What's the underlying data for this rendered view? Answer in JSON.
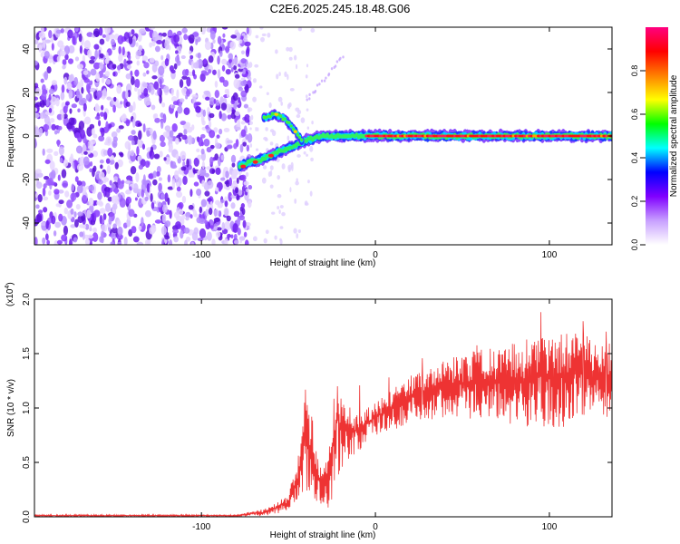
{
  "title": "C2E6.2025.245.18.48.G06",
  "chart_data": [
    {
      "type": "heatmap",
      "name": "spectrogram",
      "xlabel": "Height of straight line (km)",
      "ylabel": "Frequency (Hz)",
      "xlim": [
        -196,
        136
      ],
      "ylim": [
        -50,
        50
      ],
      "xticks": [
        -100,
        0,
        100
      ],
      "yticks": [
        -40,
        -20,
        0,
        20,
        40
      ],
      "colorbar": {
        "label": "Normalized spectral amplitude",
        "range": [
          0.0,
          1.0
        ],
        "ticks": [
          "0.0",
          "0.2",
          "0.4",
          "0.6",
          "0.8"
        ],
        "tick_values": [
          0.0,
          0.2,
          0.4,
          0.6,
          0.8
        ],
        "colors": [
          "#ffffff",
          "#c8a0ff",
          "#8000ff",
          "#0000ff",
          "#00ffff",
          "#00ff00",
          "#ffff00",
          "#ff8000",
          "#ff0000",
          "#ff0080"
        ]
      },
      "noise_region": {
        "x_from": -196,
        "x_to": -78,
        "y_from": -50,
        "y_to": 50
      },
      "signal_track": [
        {
          "x": -78,
          "y": -14
        },
        {
          "x": -72,
          "y": -12
        },
        {
          "x": -66,
          "y": -11
        },
        {
          "x": -60,
          "y": -9
        },
        {
          "x": -55,
          "y": -7
        },
        {
          "x": -48,
          "y": -5
        },
        {
          "x": -40,
          "y": -2
        },
        {
          "x": -30,
          "y": 0
        },
        {
          "x": -20,
          "y": 0
        },
        {
          "x": 0,
          "y": 0
        },
        {
          "x": 136,
          "y": 0
        }
      ],
      "side_branch": [
        {
          "x": -64,
          "y": 8
        },
        {
          "x": -58,
          "y": 10
        },
        {
          "x": -52,
          "y": 8
        },
        {
          "x": -46,
          "y": 2
        },
        {
          "x": -42,
          "y": -2
        }
      ]
    },
    {
      "type": "line",
      "name": "snr",
      "xlabel": "Height of straight line (km)",
      "ylabel": "SNR (10 * v/v)",
      "multiplier": "(x10",
      "multiplier_exp": "4",
      "xlim": [
        -196,
        136
      ],
      "ylim": [
        0.0,
        2.0
      ],
      "xticks": [
        -100,
        0,
        100
      ],
      "yticks": [
        "0.0",
        "0.5",
        "1.0",
        "1.5",
        "2.0"
      ],
      "ytick_values": [
        0.0,
        0.5,
        1.0,
        1.5,
        2.0
      ],
      "color": "#ee3333",
      "envelope": [
        {
          "x": -196,
          "lo": 0.0,
          "hi": 0.02
        },
        {
          "x": -80,
          "lo": 0.0,
          "hi": 0.02
        },
        {
          "x": -62,
          "lo": 0.01,
          "hi": 0.08
        },
        {
          "x": -50,
          "lo": 0.05,
          "hi": 0.2
        },
        {
          "x": -44,
          "lo": 0.1,
          "hi": 0.6
        },
        {
          "x": -40,
          "lo": 0.2,
          "hi": 1.25
        },
        {
          "x": -36,
          "lo": 0.15,
          "hi": 0.9
        },
        {
          "x": -32,
          "lo": 0.1,
          "hi": 0.5
        },
        {
          "x": -27,
          "lo": 0.05,
          "hi": 0.6
        },
        {
          "x": -22,
          "lo": 0.3,
          "hi": 1.4
        },
        {
          "x": -18,
          "lo": 0.5,
          "hi": 1.05
        },
        {
          "x": -10,
          "lo": 0.6,
          "hi": 0.95
        },
        {
          "x": 0,
          "lo": 0.75,
          "hi": 1.05
        },
        {
          "x": 20,
          "lo": 0.85,
          "hi": 1.3
        },
        {
          "x": 40,
          "lo": 0.9,
          "hi": 1.45
        },
        {
          "x": 60,
          "lo": 0.9,
          "hi": 1.55
        },
        {
          "x": 80,
          "lo": 0.85,
          "hi": 1.6
        },
        {
          "x": 100,
          "lo": 0.8,
          "hi": 1.7
        },
        {
          "x": 120,
          "lo": 0.85,
          "hi": 1.7
        },
        {
          "x": 136,
          "lo": 0.9,
          "hi": 1.6
        }
      ]
    }
  ]
}
